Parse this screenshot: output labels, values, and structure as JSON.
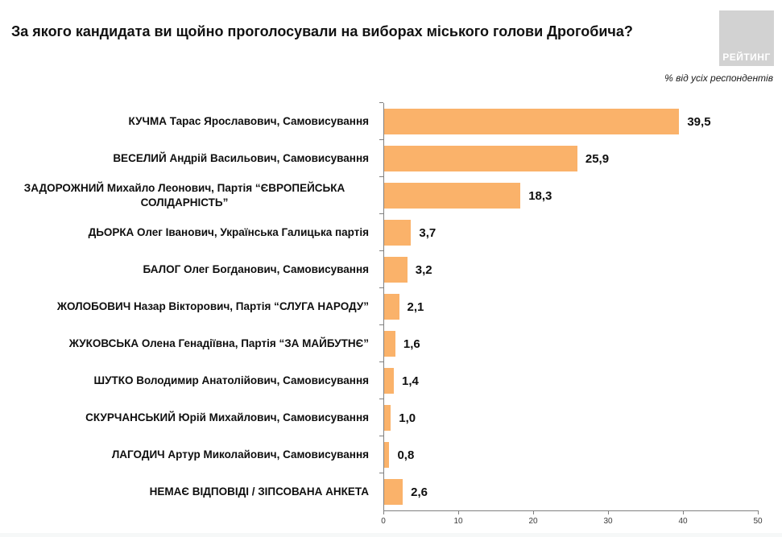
{
  "title": "За якого кандидата ви щойно проголосували на виборах міського голови Дрогобича?",
  "logo_text": "РЕЙТИНГ",
  "subtitle": "% від усіх респондентів",
  "chart_data": {
    "type": "bar",
    "orientation": "horizontal",
    "title": "За якого кандидата ви щойно проголосували на виборах міського голови Дрогобича?",
    "unit_note": "% від усіх респондентів",
    "categories": [
      "КУЧМА Тарас Ярославович, Самовисування",
      "ВЕСЕЛИЙ Андрій Васильович, Самовисування",
      "ЗАДОРОЖНИЙ Михайло Леонович, Партія “ЄВРОПЕЙСЬКА\nСОЛІДАРНІСТЬ”",
      "ДЬОРКА Олег Іванович, Українська Галицька партія",
      "БАЛОГ Олег Богданович, Самовисування",
      "ЖОЛОБОВИЧ Назар Вікторович, Партія “СЛУГА НАРОДУ”",
      "ЖУКОВСЬКА Олена Генадіївна, Партія “ЗА МАЙБУТНЄ”",
      "ШУТКО Володимир Анатолійович, Самовисування",
      "СКУРЧАНСЬКИЙ Юрій Михайлович, Самовисування",
      "ЛАГОДИЧ Артур Миколайович, Самовисування",
      "НЕМАЄ ВІДПОВІДІ / ЗІПСОВАНА АНКЕТА"
    ],
    "values": [
      39.5,
      25.9,
      18.3,
      3.7,
      3.2,
      2.1,
      1.6,
      1.4,
      1.0,
      0.8,
      2.6
    ],
    "value_labels": [
      "39,5",
      "25,9",
      "18,3",
      "3,7",
      "3,2",
      "2,1",
      "1,6",
      "1,4",
      "1,0",
      "0,8",
      "2,6"
    ],
    "xlim": [
      0,
      50
    ],
    "xticks": [
      0,
      10,
      20,
      30,
      40,
      50
    ],
    "bar_color": "#FAB26A",
    "axis_color": "#808080",
    "grid": false,
    "legend": false
  }
}
